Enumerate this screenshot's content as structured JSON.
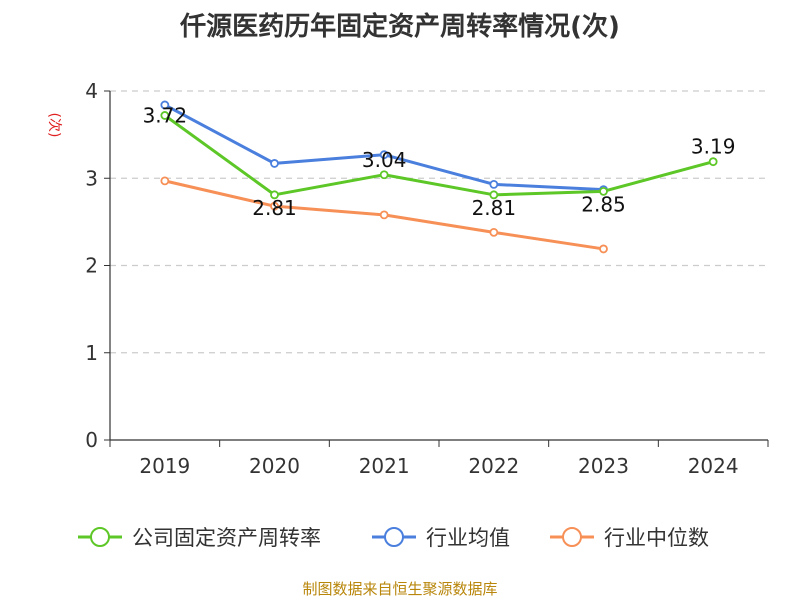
{
  "chart_data": {
    "type": "line",
    "title": "仟源医药历年固定资产周转率情况(次)",
    "ylabel": "(次)",
    "xlabel": "",
    "categories": [
      "2019",
      "2020",
      "2021",
      "2022",
      "2023",
      "2024"
    ],
    "ylim": [
      0,
      4
    ],
    "yticks": [
      0,
      1,
      2,
      3,
      4
    ],
    "grid": true,
    "legend_position": "bottom",
    "series": [
      {
        "name": "公司固定资产周转率",
        "color": "#5dc727",
        "values": [
          3.72,
          2.81,
          3.04,
          2.81,
          2.85,
          3.19
        ],
        "labels": [
          "3.72",
          "2.81",
          "3.04",
          "2.81",
          "2.85",
          "3.19"
        ]
      },
      {
        "name": "行业均值",
        "color": "#4a7fde",
        "values": [
          3.84,
          3.17,
          3.27,
          2.93,
          2.87,
          null
        ]
      },
      {
        "name": "行业中位数",
        "color": "#f79057",
        "values": [
          2.97,
          2.68,
          2.58,
          2.38,
          2.19,
          null
        ]
      }
    ]
  },
  "source_note": "制图数据来自恒生聚源数据库"
}
